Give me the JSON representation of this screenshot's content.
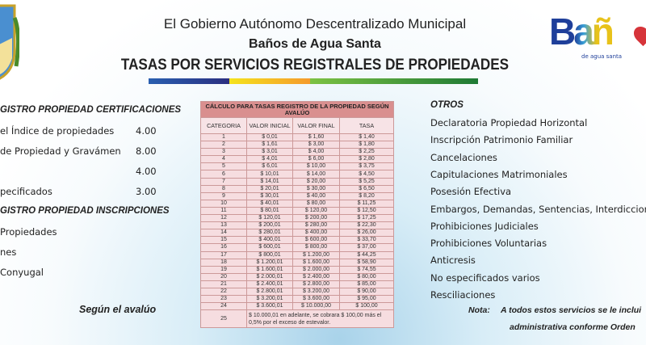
{
  "header": {
    "line1": "El Gobierno Autónomo Descentralizado Municipal",
    "line2": "Baños de Agua Santa",
    "line3": "TASAS POR SERVICIOS REGISTRALES DE PROPIEDADES",
    "stripe_colors": [
      "#2b3a8f",
      "#f6c31c",
      "#2e8b3a"
    ]
  },
  "logo_right": {
    "text": "Bañ",
    "subtitle": "de agua santa"
  },
  "left": {
    "cert_heading": "GISTRO PROPIEDAD CERTIFICACIONES",
    "cert_items": [
      {
        "label": "el Índice de propiedades",
        "value": "4.00"
      },
      {
        "label": "de Propiedad y Gravámen",
        "value": "8.00"
      },
      {
        "label": "",
        "value": "4.00"
      },
      {
        "label": "pecificados",
        "value": "3.00"
      }
    ],
    "insc_heading": "GISTRO PROPIEDAD INSCRIPCIONES",
    "insc_items": [
      "Propiedades",
      "nes",
      "Conyugal"
    ],
    "footer": "Según el avalúo"
  },
  "table": {
    "caption": "CÁLCULO PARA TASAS REGISTRO DE LA PROPIEDAD SEGÚN AVALÚO",
    "columns": [
      "CATEGORIA",
      "VALOR INICIAL",
      "VALOR FINAL",
      "TASA"
    ],
    "rows": [
      [
        "1",
        "$ 0,01",
        "$ 1,60",
        "$ 1,40"
      ],
      [
        "2",
        "$ 1,61",
        "$ 3,00",
        "$ 1,80"
      ],
      [
        "3",
        "$ 3,01",
        "$ 4,00",
        "$ 2,25"
      ],
      [
        "4",
        "$ 4,01",
        "$ 6,00",
        "$ 2,80"
      ],
      [
        "5",
        "$ 6,01",
        "$ 10,00",
        "$ 3,75"
      ],
      [
        "6",
        "$ 10,01",
        "$ 14,00",
        "$ 4,50"
      ],
      [
        "7",
        "$ 14,01",
        "$ 20,00",
        "$ 5,25"
      ],
      [
        "8",
        "$ 20,01",
        "$ 30,00",
        "$ 6,50"
      ],
      [
        "9",
        "$ 30,01",
        "$ 40,00",
        "$ 8,20"
      ],
      [
        "10",
        "$ 40,01",
        "$ 80,00",
        "$ 11,25"
      ],
      [
        "11",
        "$ 80,01",
        "$ 120,00",
        "$ 12,50"
      ],
      [
        "12",
        "$ 120,01",
        "$ 200,00",
        "$ 17,25"
      ],
      [
        "13",
        "$ 200,01",
        "$ 280,00",
        "$ 22,30"
      ],
      [
        "14",
        "$ 280,01",
        "$ 400,00",
        "$ 26,00"
      ],
      [
        "15",
        "$ 400,01",
        "$ 600,00",
        "$ 33,70"
      ],
      [
        "16",
        "$ 600,01",
        "$ 800,00",
        "$ 37,00"
      ],
      [
        "17",
        "$ 800,01",
        "$ 1.200,00",
        "$ 44,25"
      ],
      [
        "18",
        "$ 1.200,01",
        "$ 1.600,00",
        "$ 58,90"
      ],
      [
        "19",
        "$ 1.600,01",
        "$ 2.000,00",
        "$ 74,55"
      ],
      [
        "20",
        "$ 2.000,01",
        "$ 2.400,00",
        "$ 80,00"
      ],
      [
        "21",
        "$ 2.400,01",
        "$ 2.800,00",
        "$ 85,00"
      ],
      [
        "22",
        "$ 2.800,01",
        "$ 3.200,00",
        "$ 90,00"
      ],
      [
        "23",
        "$ 3.200,01",
        "$ 3.600,00",
        "$ 95,00"
      ],
      [
        "24",
        "$ 3.600,01",
        "$ 10.000,00",
        "$ 100,00"
      ]
    ],
    "last_row": {
      "category": "25",
      "text": "$ 10.000,01 en adelante, se cobrara  $ 100,00 más el 0,5% por el exceso de estevalor."
    }
  },
  "right": {
    "heading": "OTROS",
    "items": [
      "Declaratoria Propiedad Horizontal",
      "Inscripción Patrimonio Familiar",
      "Cancelaciones",
      "Capitulaciones Matrimoniales",
      "Posesión Efectiva",
      "Embargos, Demandas, Sentencias, Interdicciones",
      "Prohibiciones Judiciales",
      "Prohibiciones Voluntarias",
      "Anticresis",
      "No especificados varios",
      "Resciliaciones"
    ],
    "note_label": "Nota:",
    "note_line1": "A todos estos servicios se le inclui",
    "note_line2": "administrativa  conforme Orden"
  }
}
